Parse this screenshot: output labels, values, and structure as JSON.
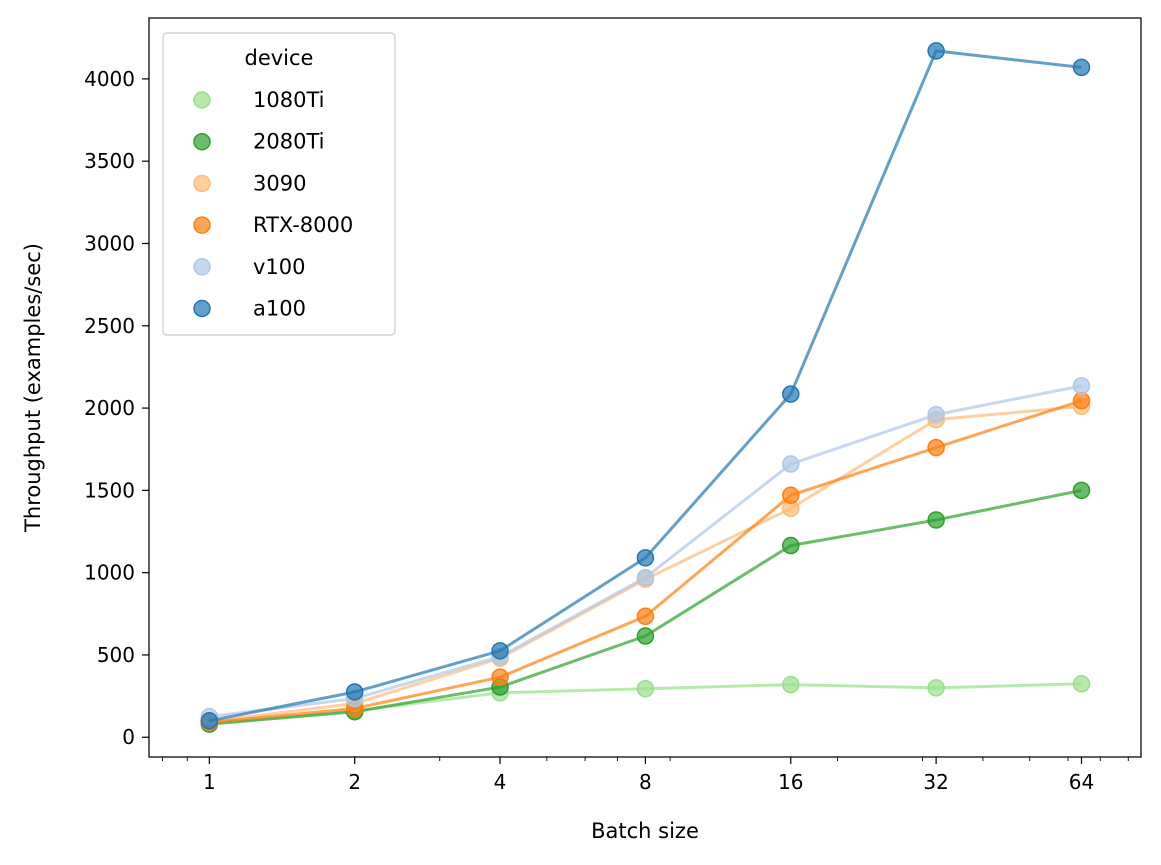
{
  "chart_data": {
    "type": "line",
    "title": "",
    "xlabel": "Batch size",
    "ylabel": "Throughput (examples/sec)",
    "x_scale": "log2",
    "x": [
      1,
      2,
      4,
      8,
      16,
      32,
      64
    ],
    "x_tick_labels": [
      "1",
      "2",
      "4",
      "8",
      "16",
      "32",
      "64"
    ],
    "xlim": [
      0.75,
      85
    ],
    "ylim": [
      -120,
      4370
    ],
    "y_ticks": [
      0,
      500,
      1000,
      1500,
      2000,
      2500,
      3000,
      3500,
      4000
    ],
    "y_tick_labels": [
      "0",
      "500",
      "1000",
      "1500",
      "2000",
      "2500",
      "3000",
      "3500",
      "4000"
    ],
    "grid": false,
    "legend": {
      "title": "device",
      "placement": "top-left"
    },
    "series": [
      {
        "name": "1080Ti",
        "color": "#98df8a",
        "values": [
          85,
          160,
          270,
          295,
          320,
          300,
          325
        ]
      },
      {
        "name": "2080Ti",
        "color": "#2ca02c",
        "values": [
          80,
          155,
          305,
          615,
          1165,
          1320,
          1500
        ]
      },
      {
        "name": "3090",
        "color": "#ffbb78",
        "values": [
          95,
          205,
          480,
          960,
          1390,
          1930,
          2010
        ]
      },
      {
        "name": "RTX-8000",
        "color": "#ff7f0e",
        "values": [
          90,
          175,
          365,
          735,
          1470,
          1760,
          2045
        ]
      },
      {
        "name": "v100",
        "color": "#aec7e8",
        "values": [
          125,
          235,
          490,
          970,
          1660,
          1960,
          2135
        ]
      },
      {
        "name": "a100",
        "color": "#1f77b4",
        "values": [
          100,
          275,
          525,
          1090,
          2085,
          4170,
          4070
        ]
      }
    ]
  }
}
